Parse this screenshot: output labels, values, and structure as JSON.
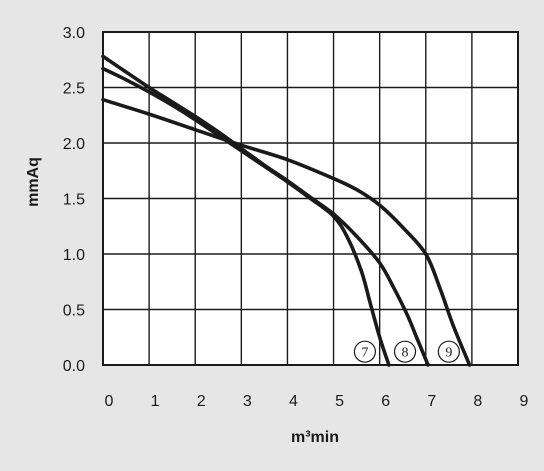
{
  "chart_data": {
    "type": "line",
    "xlabel": "m³min",
    "ylabel": "mmAq",
    "xlim": [
      0,
      9
    ],
    "ylim": [
      0,
      3
    ],
    "x_ticks": [
      "0",
      "1",
      "2",
      "3",
      "4",
      "5",
      "6",
      "7",
      "8",
      "9"
    ],
    "y_ticks": [
      "0.0",
      "0.5",
      "1.0",
      "1.5",
      "2.0",
      "2.5",
      "3.0"
    ],
    "grid": true,
    "series": [
      {
        "name": "7",
        "x": [
          0,
          0.5,
          1,
          1.5,
          2,
          2.5,
          3,
          3.5,
          4,
          4.5,
          5,
          5.3,
          5.6,
          5.8,
          6.0,
          6.2
        ],
        "y": [
          2.67,
          2.57,
          2.46,
          2.34,
          2.21,
          2.07,
          1.93,
          1.79,
          1.65,
          1.5,
          1.34,
          1.15,
          0.85,
          0.55,
          0.25,
          0.0
        ]
      },
      {
        "name": "8",
        "x": [
          0,
          0.5,
          1,
          1.5,
          2,
          2.5,
          3,
          3.5,
          4,
          4.5,
          5,
          5.5,
          6,
          6.3,
          6.6,
          6.8,
          7.05
        ],
        "y": [
          2.78,
          2.64,
          2.5,
          2.37,
          2.24,
          2.1,
          1.95,
          1.8,
          1.66,
          1.51,
          1.36,
          1.16,
          0.92,
          0.7,
          0.45,
          0.25,
          0.0
        ]
      },
      {
        "name": "9",
        "x": [
          0,
          1,
          2,
          3,
          4,
          5,
          5.5,
          6,
          6.5,
          7,
          7.3,
          7.6,
          7.95
        ],
        "y": [
          2.39,
          2.26,
          2.12,
          1.98,
          1.85,
          1.68,
          1.58,
          1.44,
          1.24,
          1.0,
          0.7,
          0.35,
          0.0
        ]
      }
    ],
    "curve_labels": [
      {
        "text": "7",
        "x": 5.68,
        "y": 0.12
      },
      {
        "text": "8",
        "x": 6.55,
        "y": 0.12
      },
      {
        "text": "9",
        "x": 7.5,
        "y": 0.12
      }
    ]
  }
}
